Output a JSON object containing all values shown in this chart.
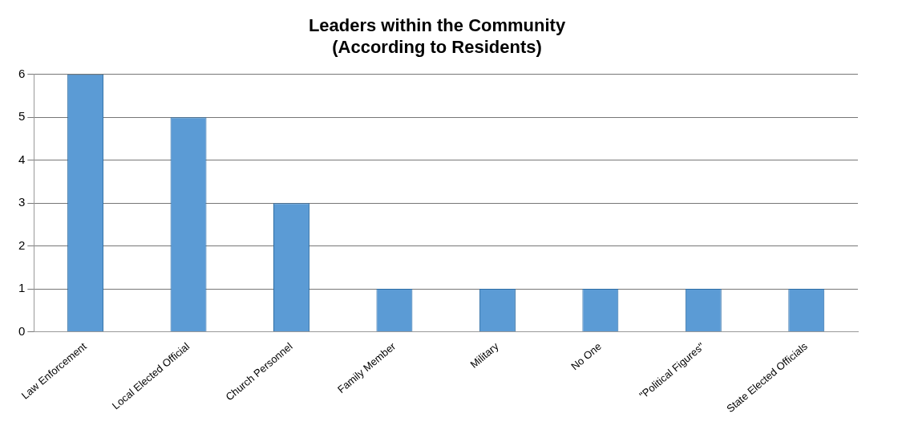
{
  "chart_data": {
    "type": "bar",
    "title": "Leaders within the Community\n(According to Residents)",
    "categories": [
      "Law Enforcement",
      "Local Elected Official",
      "Church Personnel",
      "Family Member",
      "Military",
      "No One",
      "\"Political Figures\"",
      "State Elected Officials"
    ],
    "values": [
      6,
      5,
      3,
      1,
      1,
      1,
      1,
      1
    ],
    "color": "#5b9bd5",
    "ylim": [
      0,
      6
    ],
    "yticks": [
      0,
      1,
      2,
      3,
      4,
      5,
      6
    ],
    "grid": "y",
    "legend": false
  }
}
